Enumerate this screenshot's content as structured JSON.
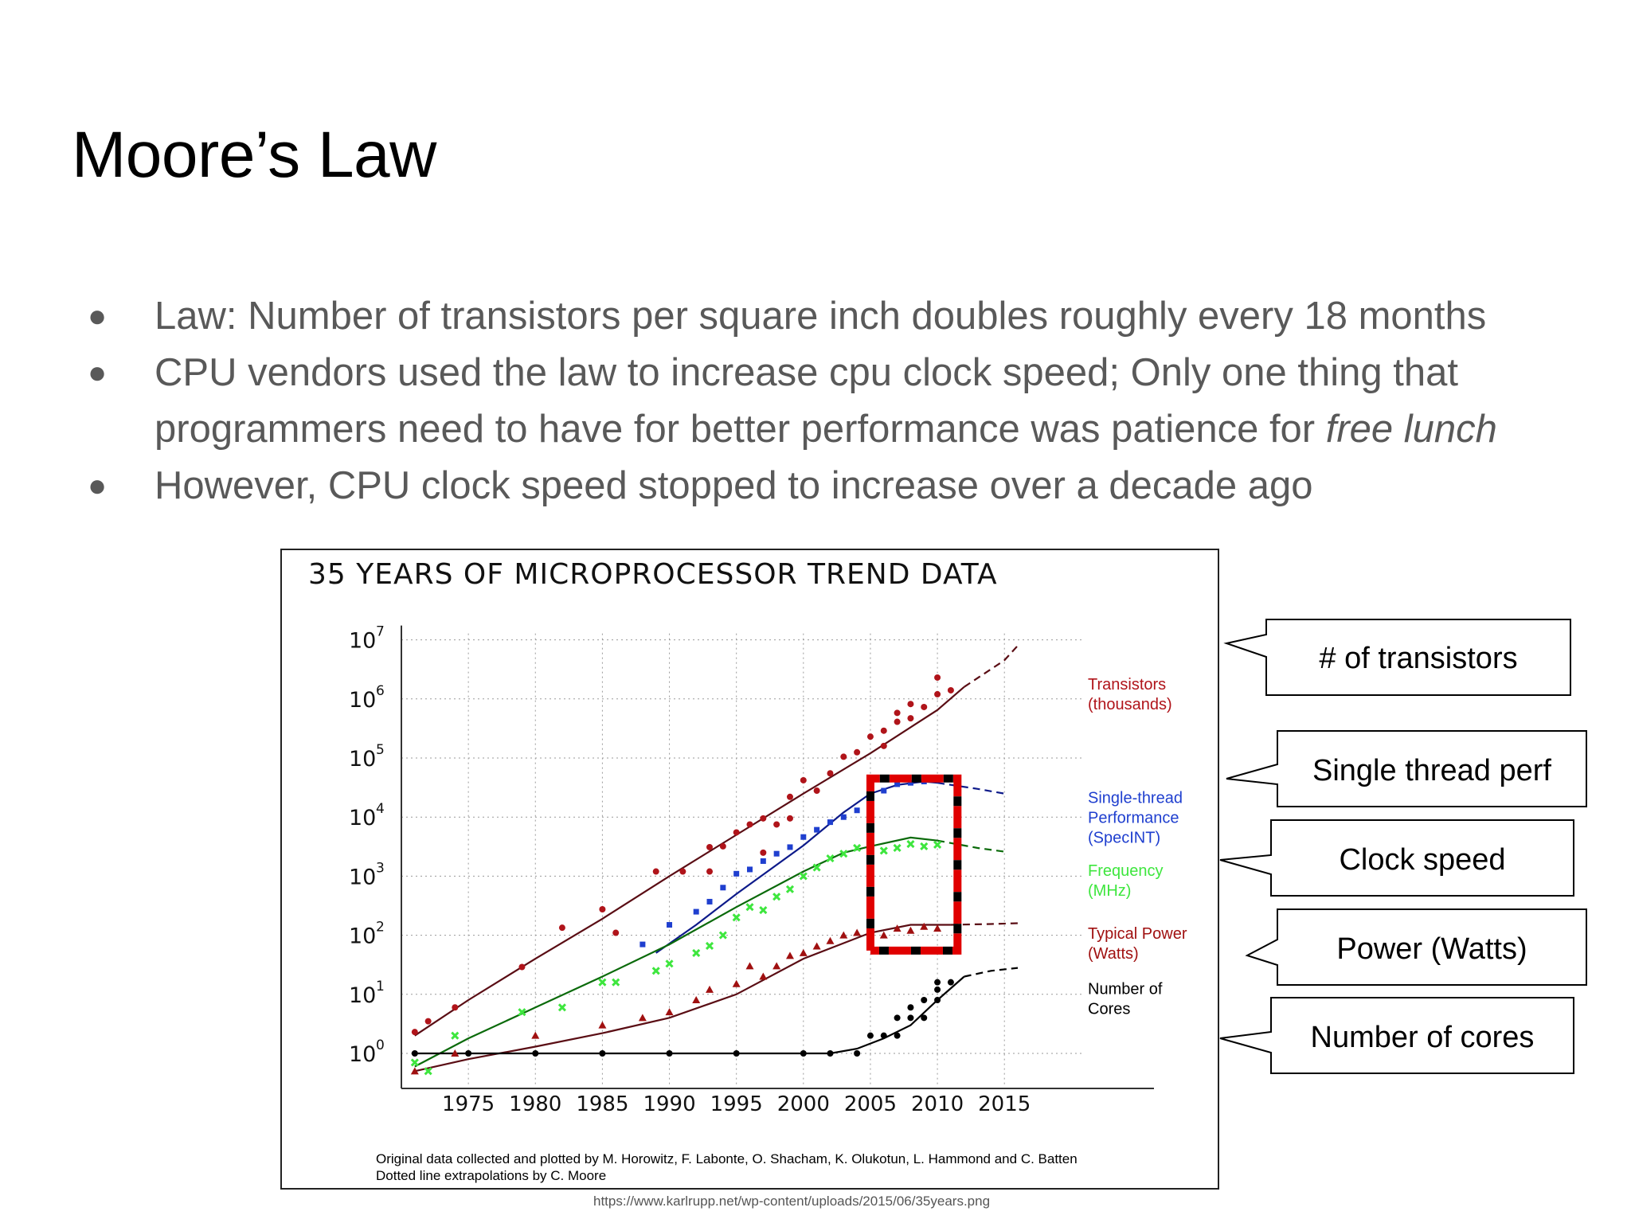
{
  "slide": {
    "title": "Moore’s Law",
    "bullets": [
      {
        "text": "Law: Number of transistors per square inch doubles roughly every 18 months"
      },
      {
        "text": "CPU vendors used the law to increase cpu clock speed; Only one thing that programmers need to have for better performance was patience for ",
        "emphasis": "free lunch"
      },
      {
        "text": "However, CPU clock speed stopped to increase over a decade ago"
      }
    ],
    "source_url": "https://www.karlrupp.net/wp-content/uploads/2015/06/35years.png",
    "callouts": [
      "# of transistors",
      "Single thread perf",
      "Clock speed",
      "Power (Watts)",
      "Number of cores"
    ]
  },
  "colors": {
    "transistors": "#b0141a",
    "single_thread": "#1f3fcf",
    "frequency": "#3ee63e",
    "power": "#a01010",
    "cores": "#000000",
    "highlight": "#e00000",
    "transistor_fit": "#5a0d14",
    "single_fit": "#0d1a8a",
    "freq_fit": "#0a6a0a",
    "power_fit": "#5a0d14"
  },
  "chart_data": {
    "type": "scatter",
    "title": "35 YEARS OF MICROPROCESSOR TREND DATA",
    "x_ticks": [
      1975,
      1980,
      1985,
      1990,
      1995,
      2000,
      2005,
      2010,
      2015
    ],
    "xlim": [
      1970,
      2022
    ],
    "y_scale": "log",
    "y_tick_labels": [
      {
        "base": "10",
        "exp": "0",
        "value": 1
      },
      {
        "base": "10",
        "exp": "1",
        "value": 10
      },
      {
        "base": "10",
        "exp": "2",
        "value": 100
      },
      {
        "base": "10",
        "exp": "3",
        "value": 1000
      },
      {
        "base": "10",
        "exp": "4",
        "value": 10000
      },
      {
        "base": "10",
        "exp": "5",
        "value": 100000
      },
      {
        "base": "10",
        "exp": "6",
        "value": 1000000
      },
      {
        "base": "10",
        "exp": "7",
        "value": 10000000
      }
    ],
    "grid": true,
    "series": [
      {
        "key": "transistors",
        "label_lines": [
          "Transistors",
          "(thousands)"
        ],
        "label_y": 1000000,
        "marker": "circle",
        "points": [
          [
            1971,
            2.3
          ],
          [
            1972,
            3.5
          ],
          [
            1974,
            6
          ],
          [
            1979,
            29
          ],
          [
            1982,
            134
          ],
          [
            1985,
            275
          ],
          [
            1986,
            110
          ],
          [
            1989,
            1200
          ],
          [
            1991,
            1200
          ],
          [
            1993,
            3100
          ],
          [
            1993,
            1200
          ],
          [
            1994,
            3200
          ],
          [
            1995,
            5500
          ],
          [
            1996,
            7500
          ],
          [
            1997,
            9500
          ],
          [
            1997,
            2500
          ],
          [
            1998,
            7500
          ],
          [
            1999,
            9500
          ],
          [
            1999,
            22000
          ],
          [
            2000,
            42000
          ],
          [
            2001,
            28000
          ],
          [
            2002,
            55000
          ],
          [
            2003,
            105000
          ],
          [
            2004,
            125000
          ],
          [
            2005,
            230000
          ],
          [
            2006,
            290000
          ],
          [
            2006,
            160000
          ],
          [
            2007,
            410000
          ],
          [
            2007,
            580000
          ],
          [
            2008,
            820000
          ],
          [
            2008,
            470000
          ],
          [
            2009,
            730000
          ],
          [
            2010,
            1200000
          ],
          [
            2010,
            2300000
          ],
          [
            2011,
            1400000
          ]
        ],
        "fit": [
          [
            1971,
            2
          ],
          [
            1975,
            8
          ],
          [
            1980,
            40
          ],
          [
            1985,
            190
          ],
          [
            1990,
            1000
          ],
          [
            1995,
            5000
          ],
          [
            2000,
            25000
          ],
          [
            2005,
            120000
          ],
          [
            2010,
            650000
          ],
          [
            2012,
            1600000
          ]
        ],
        "extrapolation": [
          [
            2012,
            1600000
          ],
          [
            2015,
            4500000
          ],
          [
            2016,
            8000000
          ]
        ]
      },
      {
        "key": "single_thread",
        "label_lines": [
          "Single-thread",
          "Performance",
          "(SpecINT)"
        ],
        "label_y": 12000,
        "marker": "square",
        "points": [
          [
            1988,
            70
          ],
          [
            1990,
            150
          ],
          [
            1992,
            250
          ],
          [
            1993,
            370
          ],
          [
            1994,
            640
          ],
          [
            1995,
            1100
          ],
          [
            1996,
            1300
          ],
          [
            1997,
            1800
          ],
          [
            1998,
            2400
          ],
          [
            1999,
            3100
          ],
          [
            2000,
            4600
          ],
          [
            2001,
            6100
          ],
          [
            2002,
            8200
          ],
          [
            2003,
            10000
          ],
          [
            2004,
            13000
          ],
          [
            2005,
            20000
          ],
          [
            2006,
            28000
          ],
          [
            2007,
            36000
          ],
          [
            2008,
            38000
          ],
          [
            2009,
            40000
          ]
        ],
        "fit": [
          [
            1989,
            50
          ],
          [
            1992,
            150
          ],
          [
            1995,
            500
          ],
          [
            2000,
            3300
          ],
          [
            2003,
            12000
          ],
          [
            2005,
            25000
          ],
          [
            2007,
            35000
          ],
          [
            2009,
            40000
          ],
          [
            2010,
            38000
          ]
        ],
        "extrapolation": [
          [
            2010,
            38000
          ],
          [
            2013,
            30000
          ],
          [
            2015,
            25000
          ]
        ]
      },
      {
        "key": "frequency",
        "label_lines": [
          "Frequency",
          "(MHz)"
        ],
        "label_y": 700,
        "marker": "x",
        "points": [
          [
            1971,
            0.7
          ],
          [
            1972,
            0.5
          ],
          [
            1974,
            2
          ],
          [
            1979,
            5
          ],
          [
            1982,
            6
          ],
          [
            1985,
            16
          ],
          [
            1986,
            16
          ],
          [
            1989,
            25
          ],
          [
            1990,
            33
          ],
          [
            1992,
            50
          ],
          [
            1993,
            66
          ],
          [
            1994,
            100
          ],
          [
            1995,
            200
          ],
          [
            1996,
            300
          ],
          [
            1997,
            266
          ],
          [
            1998,
            450
          ],
          [
            1999,
            600
          ],
          [
            2000,
            1000
          ],
          [
            2001,
            1400
          ],
          [
            2002,
            2000
          ],
          [
            2003,
            2400
          ],
          [
            2004,
            3000
          ],
          [
            2005,
            3200
          ],
          [
            2006,
            2700
          ],
          [
            2007,
            3000
          ],
          [
            2008,
            3500
          ],
          [
            2009,
            3200
          ],
          [
            2010,
            3400
          ]
        ],
        "fit": [
          [
            1971,
            0.6
          ],
          [
            1975,
            1.8
          ],
          [
            1980,
            6
          ],
          [
            1985,
            20
          ],
          [
            1990,
            70
          ],
          [
            1995,
            300
          ],
          [
            2000,
            1200
          ],
          [
            2003,
            2500
          ],
          [
            2005,
            3200
          ],
          [
            2008,
            4500
          ],
          [
            2010,
            4000
          ]
        ],
        "extrapolation": [
          [
            2010,
            4000
          ],
          [
            2013,
            3000
          ],
          [
            2015,
            2600
          ]
        ]
      },
      {
        "key": "power",
        "label_lines": [
          "Typical Power",
          "(Watts)"
        ],
        "label_y": 60,
        "marker": "triangle",
        "points": [
          [
            1971,
            0.5
          ],
          [
            1974,
            1
          ],
          [
            1980,
            2
          ],
          [
            1985,
            3
          ],
          [
            1988,
            4
          ],
          [
            1990,
            5
          ],
          [
            1992,
            8
          ],
          [
            1993,
            12
          ],
          [
            1995,
            15
          ],
          [
            1996,
            30
          ],
          [
            1997,
            20
          ],
          [
            1998,
            30
          ],
          [
            1999,
            45
          ],
          [
            2000,
            50
          ],
          [
            2001,
            65
          ],
          [
            2002,
            80
          ],
          [
            2003,
            100
          ],
          [
            2004,
            110
          ],
          [
            2005,
            130
          ],
          [
            2006,
            100
          ],
          [
            2007,
            130
          ],
          [
            2008,
            120
          ],
          [
            2009,
            140
          ],
          [
            2010,
            130
          ]
        ],
        "fit": [
          [
            1971,
            0.5
          ],
          [
            1975,
            0.8
          ],
          [
            1980,
            1.3
          ],
          [
            1985,
            2.2
          ],
          [
            1990,
            4
          ],
          [
            1995,
            10
          ],
          [
            2000,
            40
          ],
          [
            2005,
            110
          ],
          [
            2008,
            150
          ],
          [
            2011,
            150
          ]
        ],
        "extrapolation": [
          [
            2011,
            150
          ],
          [
            2014,
            155
          ],
          [
            2016,
            160
          ]
        ]
      },
      {
        "key": "cores",
        "label_lines": [
          "Number of",
          "Cores"
        ],
        "label_y": 7,
        "marker": "circle",
        "points": [
          [
            1971,
            1
          ],
          [
            1975,
            1
          ],
          [
            1980,
            1
          ],
          [
            1985,
            1
          ],
          [
            1990,
            1
          ],
          [
            1995,
            1
          ],
          [
            2000,
            1
          ],
          [
            2002,
            1
          ],
          [
            2004,
            1
          ],
          [
            2005,
            2
          ],
          [
            2006,
            2
          ],
          [
            2007,
            2
          ],
          [
            2007,
            4
          ],
          [
            2008,
            4
          ],
          [
            2008,
            6
          ],
          [
            2009,
            8
          ],
          [
            2009,
            4
          ],
          [
            2010,
            8
          ],
          [
            2010,
            12
          ],
          [
            2010,
            16
          ],
          [
            2011,
            16
          ]
        ],
        "fit": [
          [
            1971,
            1
          ],
          [
            1990,
            1
          ],
          [
            2002,
            1
          ],
          [
            2004,
            1.2
          ],
          [
            2006,
            1.8
          ],
          [
            2008,
            3
          ],
          [
            2010,
            8
          ],
          [
            2012,
            20
          ]
        ],
        "extrapolation": [
          [
            2012,
            20
          ],
          [
            2014,
            25
          ],
          [
            2016,
            28
          ]
        ]
      }
    ],
    "attribution": [
      "Original data collected and plotted by M. Horowitz, F. Labonte, O. Shacham, K. Olukotun, L. Hammond and C. Batten",
      "Dotted line extrapolations by C. Moore"
    ],
    "highlight": {
      "x_start": 2005,
      "x_end": 2011.5,
      "y_top": 45000,
      "y_bottom": 55
    }
  }
}
